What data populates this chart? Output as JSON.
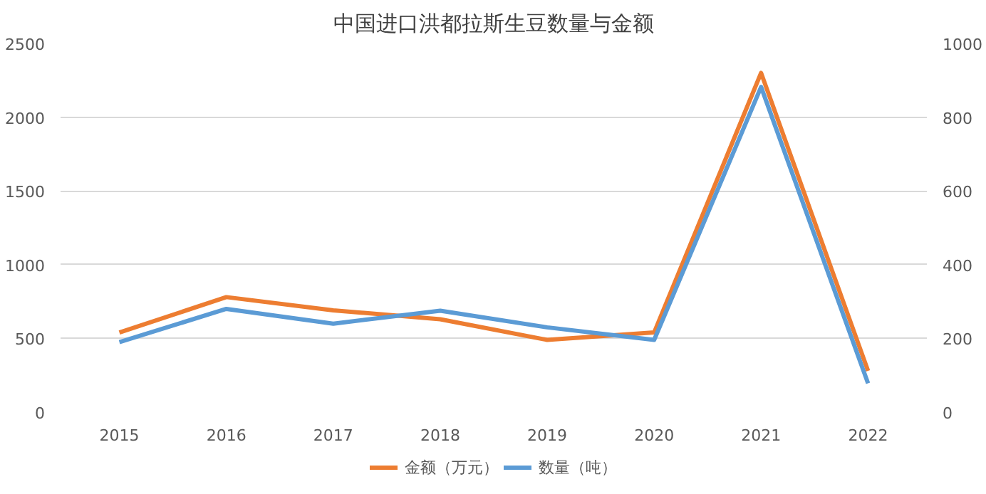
{
  "chart_data": {
    "type": "line",
    "title": "中国进口洪都拉斯生豆数量与金额",
    "x": [
      2015,
      2016,
      2017,
      2018,
      2019,
      2020,
      2021,
      2022
    ],
    "xlim": [
      2014.45,
      2022.55
    ],
    "xticks": [
      2015,
      2016,
      2017,
      2018,
      2019,
      2020,
      2021,
      2022
    ],
    "ylim": [
      0,
      2500
    ],
    "yticks": [
      0,
      500,
      1000,
      1500,
      2000,
      2500
    ],
    "y2lim": [
      0,
      1000
    ],
    "y2ticks": [
      0,
      200,
      400,
      600,
      800,
      1000
    ],
    "grid": "y",
    "legend": "bottom",
    "marker": "none",
    "line_style": "solid",
    "series": [
      {
        "name": "金额（万元）",
        "color": "#ed7d31",
        "values": [
          540,
          780,
          690,
          630,
          490,
          540,
          2300,
          280
        ]
      },
      {
        "name": "数量（吨）",
        "color": "#5b9bd5",
        "axis": "y2",
        "values": [
          190,
          280,
          240,
          275,
          230,
          196,
          882,
          78
        ]
      }
    ]
  }
}
